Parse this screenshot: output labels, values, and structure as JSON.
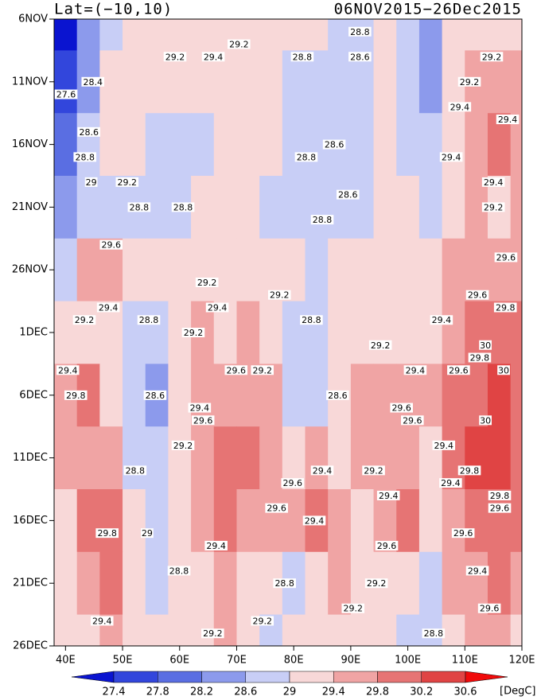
{
  "chart_data": {
    "type": "heatmap",
    "title_left": "Lat=(−10,10)",
    "title_right": "06NOV2015−26Dec2015",
    "unit_label": "[DegC]",
    "xlim": [
      38,
      120
    ],
    "xticks": [
      {
        "value": 40,
        "label": "40E"
      },
      {
        "value": 50,
        "label": "50E"
      },
      {
        "value": 60,
        "label": "60E"
      },
      {
        "value": 70,
        "label": "70E"
      },
      {
        "value": 80,
        "label": "80E"
      },
      {
        "value": 90,
        "label": "90E"
      },
      {
        "value": 100,
        "label": "100E"
      },
      {
        "value": 110,
        "label": "110E"
      },
      {
        "value": 120,
        "label": "120E"
      }
    ],
    "ylim": [
      "2015-11-06",
      "2015-12-26"
    ],
    "yticks": [
      {
        "value": "2015-11-06",
        "label": "6NOV"
      },
      {
        "value": "2015-11-11",
        "label": "11NOV"
      },
      {
        "value": "2015-11-16",
        "label": "16NOV"
      },
      {
        "value": "2015-11-21",
        "label": "21NOV"
      },
      {
        "value": "2015-11-26",
        "label": "26NOV"
      },
      {
        "value": "2015-12-01",
        "label": "1DEC"
      },
      {
        "value": "2015-12-06",
        "label": "6DEC"
      },
      {
        "value": "2015-12-11",
        "label": "11DEC"
      },
      {
        "value": "2015-12-16",
        "label": "16DEC"
      },
      {
        "value": "2015-12-21",
        "label": "21DEC"
      },
      {
        "value": "2015-12-26",
        "label": "26DEC"
      }
    ],
    "levels": [
      27.4,
      27.8,
      28.2,
      28.6,
      29,
      29.4,
      29.8,
      30.2,
      30.6
    ],
    "colors": [
      "#0a14d0",
      "#3246dc",
      "#5a6ee2",
      "#8c9aec",
      "#c8cef6",
      "#f8d8d8",
      "#f0a4a4",
      "#e67474",
      "#e04444",
      "#f00a0a"
    ],
    "x": [
      40,
      44,
      48,
      52,
      56,
      60,
      64,
      68,
      72,
      76,
      80,
      84,
      88,
      92,
      96,
      100,
      104,
      108,
      112,
      116,
      120
    ],
    "y": [
      "2015-11-06",
      "2015-11-11",
      "2015-11-16",
      "2015-11-21",
      "2015-11-26",
      "2015-12-01",
      "2015-12-06",
      "2015-12-11",
      "2015-12-16",
      "2015-12-21",
      "2015-12-26"
    ],
    "z": [
      [
        27.2,
        28.2,
        28.9,
        29.0,
        29.1,
        29.2,
        29.3,
        29.2,
        29.3,
        29.1,
        29.0,
        29.0,
        28.8,
        28.7,
        29.0,
        28.9,
        28.4,
        29.1,
        29.2,
        29.3,
        29.2
      ],
      [
        27.6,
        28.4,
        29.0,
        29.1,
        29.2,
        29.1,
        29.0,
        29.1,
        29.2,
        29.1,
        28.9,
        28.8,
        28.7,
        28.9,
        29.0,
        28.8,
        28.5,
        29.2,
        29.4,
        29.6,
        29.5
      ],
      [
        28.0,
        28.7,
        29.0,
        29.0,
        28.9,
        28.8,
        28.9,
        29.0,
        29.1,
        29.0,
        28.8,
        28.7,
        28.6,
        28.8,
        29.0,
        28.9,
        28.6,
        29.3,
        29.5,
        29.8,
        29.6
      ],
      [
        28.3,
        28.8,
        28.8,
        28.7,
        28.8,
        28.9,
        29.0,
        29.1,
        29.0,
        28.9,
        28.8,
        28.9,
        28.6,
        28.9,
        29.1,
        29.1,
        28.8,
        29.2,
        29.4,
        29.3,
        29.5
      ],
      [
        28.8,
        29.6,
        29.6,
        29.1,
        29.0,
        29.1,
        29.2,
        29.3,
        29.2,
        29.0,
        29.1,
        28.9,
        29.0,
        29.1,
        29.2,
        29.1,
        29.0,
        29.4,
        29.7,
        29.6,
        29.7
      ],
      [
        29.1,
        29.3,
        29.0,
        28.7,
        28.6,
        29.0,
        29.4,
        29.3,
        29.4,
        29.3,
        28.8,
        28.8,
        29.1,
        29.2,
        29.3,
        29.3,
        29.2,
        29.6,
        29.8,
        30.0,
        29.8
      ],
      [
        29.6,
        29.8,
        29.2,
        28.6,
        28.5,
        29.0,
        29.4,
        29.5,
        29.6,
        29.4,
        28.9,
        28.7,
        29.2,
        29.4,
        29.6,
        29.7,
        29.5,
        29.9,
        30.1,
        30.2,
        29.9
      ],
      [
        29.4,
        29.6,
        29.5,
        28.9,
        28.8,
        29.2,
        29.6,
        29.8,
        29.9,
        29.6,
        29.2,
        29.4,
        29.3,
        29.4,
        29.6,
        29.5,
        29.3,
        29.8,
        30.2,
        30.5,
        30.0
      ],
      [
        29.3,
        29.9,
        29.8,
        29.0,
        28.9,
        29.2,
        29.4,
        29.8,
        29.6,
        29.4,
        29.4,
        29.8,
        29.5,
        29.3,
        29.5,
        29.8,
        29.3,
        29.6,
        29.9,
        30.1,
        29.8
      ],
      [
        29.1,
        29.6,
        29.9,
        29.2,
        28.8,
        29.0,
        29.3,
        29.6,
        29.3,
        29.0,
        28.9,
        29.3,
        29.4,
        29.2,
        29.1,
        29.0,
        28.9,
        29.4,
        29.6,
        29.8,
        29.6
      ],
      [
        29.0,
        29.3,
        29.4,
        29.2,
        29.0,
        29.1,
        29.3,
        29.4,
        29.2,
        28.9,
        29.0,
        29.2,
        29.3,
        29.1,
        29.0,
        28.8,
        28.7,
        29.2,
        29.4,
        29.5,
        29.3
      ]
    ],
    "contour_labels": [
      {
        "x": 40.1,
        "y": "2015-11-12",
        "value": 27.6
      },
      {
        "x": 44.8,
        "y": "2015-11-11",
        "value": 28.4
      },
      {
        "x": 44.1,
        "y": "2015-11-15",
        "value": 28.6
      },
      {
        "x": 43.4,
        "y": "2015-11-17",
        "value": 28.8
      },
      {
        "x": 44.5,
        "y": "2015-11-19",
        "value": 29
      },
      {
        "x": 50.8,
        "y": "2015-11-19",
        "value": 29.2
      },
      {
        "x": 52.9,
        "y": "2015-11-21",
        "value": 28.8
      },
      {
        "x": 60.6,
        "y": "2015-11-21",
        "value": 28.8
      },
      {
        "x": 48,
        "y": "2015-11-24",
        "value": 29.6
      },
      {
        "x": 59.2,
        "y": "2015-11-09",
        "value": 29.2
      },
      {
        "x": 65.9,
        "y": "2015-11-09",
        "value": 29.4
      },
      {
        "x": 70.4,
        "y": "2015-11-08",
        "value": 29.2
      },
      {
        "x": 91.6,
        "y": "2015-11-07",
        "value": 28.8
      },
      {
        "x": 81.5,
        "y": "2015-11-09",
        "value": 28.8
      },
      {
        "x": 91.6,
        "y": "2015-11-09",
        "value": 28.6
      },
      {
        "x": 114.7,
        "y": "2015-11-09",
        "value": 29.2
      },
      {
        "x": 110.8,
        "y": "2015-11-11",
        "value": 29.2
      },
      {
        "x": 109.1,
        "y": "2015-11-13",
        "value": 29.4
      },
      {
        "x": 117.5,
        "y": "2015-11-14",
        "value": 29.4
      },
      {
        "x": 87.1,
        "y": "2015-11-16",
        "value": 28.6
      },
      {
        "x": 82.2,
        "y": "2015-11-17",
        "value": 28.8
      },
      {
        "x": 107.6,
        "y": "2015-11-17",
        "value": 29.4
      },
      {
        "x": 115,
        "y": "2015-11-19",
        "value": 29.4
      },
      {
        "x": 89.5,
        "y": "2015-11-20",
        "value": 28.6
      },
      {
        "x": 115,
        "y": "2015-11-21",
        "value": 29.2
      },
      {
        "x": 85,
        "y": "2015-11-22",
        "value": 28.8
      },
      {
        "x": 117.2,
        "y": "2015-11-25",
        "value": 29.6
      },
      {
        "x": 112.2,
        "y": "2015-11-28",
        "value": 29.6
      },
      {
        "x": 117.1,
        "y": "2015-11-29",
        "value": 29.8
      },
      {
        "x": 47.5,
        "y": "2015-11-29",
        "value": 29.4
      },
      {
        "x": 43.3,
        "y": "2015-11-30",
        "value": 29.2
      },
      {
        "x": 64.8,
        "y": "2015-11-27",
        "value": 29.2
      },
      {
        "x": 77.5,
        "y": "2015-11-28",
        "value": 29.2
      },
      {
        "x": 83.1,
        "y": "2015-11-30",
        "value": 28.8
      },
      {
        "x": 66.6,
        "y": "2015-11-29",
        "value": 29.4
      },
      {
        "x": 54.6,
        "y": "2015-11-30",
        "value": 28.8
      },
      {
        "x": 62.4,
        "y": "2015-12-01",
        "value": 29.2
      },
      {
        "x": 105.9,
        "y": "2015-11-30",
        "value": 29.4
      },
      {
        "x": 113.6,
        "y": "2015-12-02",
        "value": 30
      },
      {
        "x": 112.6,
        "y": "2015-12-03",
        "value": 29.8
      },
      {
        "x": 116.8,
        "y": "2015-12-04",
        "value": 30
      },
      {
        "x": 95.2,
        "y": "2015-12-02",
        "value": 29.2
      },
      {
        "x": 101.3,
        "y": "2015-12-04",
        "value": 29.4
      },
      {
        "x": 108.9,
        "y": "2015-12-04",
        "value": 29.6
      },
      {
        "x": 40.4,
        "y": "2015-12-04",
        "value": 29.4
      },
      {
        "x": 41.8,
        "y": "2015-12-06",
        "value": 29.8
      },
      {
        "x": 55.7,
        "y": "2015-12-06",
        "value": 28.6
      },
      {
        "x": 63.5,
        "y": "2015-12-07",
        "value": 29.4
      },
      {
        "x": 87.7,
        "y": "2015-12-06",
        "value": 28.6
      },
      {
        "x": 69.9,
        "y": "2015-12-04",
        "value": 29.6
      },
      {
        "x": 74.5,
        "y": "2015-12-04",
        "value": 29.2
      },
      {
        "x": 98.9,
        "y": "2015-12-07",
        "value": 29.6
      },
      {
        "x": 100.8,
        "y": "2015-12-08",
        "value": 29.6
      },
      {
        "x": 113.6,
        "y": "2015-12-08",
        "value": 30
      },
      {
        "x": 64.1,
        "y": "2015-12-08",
        "value": 29.6
      },
      {
        "x": 60.6,
        "y": "2015-12-10",
        "value": 29.2
      },
      {
        "x": 106.3,
        "y": "2015-12-10",
        "value": 29.4
      },
      {
        "x": 110.8,
        "y": "2015-12-12",
        "value": 29.8
      },
      {
        "x": 85,
        "y": "2015-12-12",
        "value": 29.4
      },
      {
        "x": 94,
        "y": "2015-12-12",
        "value": 29.2
      },
      {
        "x": 79.8,
        "y": "2015-12-13",
        "value": 29.6
      },
      {
        "x": 52.2,
        "y": "2015-12-12",
        "value": 28.8
      },
      {
        "x": 96.6,
        "y": "2015-12-14",
        "value": 29.4
      },
      {
        "x": 116.1,
        "y": "2015-12-14",
        "value": 29.8
      },
      {
        "x": 107.5,
        "y": "2015-12-13",
        "value": 29.4
      },
      {
        "x": 77,
        "y": "2015-12-15",
        "value": 29.6
      },
      {
        "x": 83.6,
        "y": "2015-12-16",
        "value": 29.4
      },
      {
        "x": 116.1,
        "y": "2015-12-15",
        "value": 29.6
      },
      {
        "x": 47.3,
        "y": "2015-12-17",
        "value": 29.8
      },
      {
        "x": 96.3,
        "y": "2015-12-18",
        "value": 29.6
      },
      {
        "x": 109.7,
        "y": "2015-12-17",
        "value": 29.6
      },
      {
        "x": 66.4,
        "y": "2015-12-18",
        "value": 29.4
      },
      {
        "x": 54.3,
        "y": "2015-12-17",
        "value": 29
      },
      {
        "x": 59.9,
        "y": "2015-12-20",
        "value": 28.8
      },
      {
        "x": 94.5,
        "y": "2015-12-21",
        "value": 29.2
      },
      {
        "x": 112.2,
        "y": "2015-12-20",
        "value": 29.4
      },
      {
        "x": 114.3,
        "y": "2015-12-23",
        "value": 29.6
      },
      {
        "x": 78.4,
        "y": "2015-12-21",
        "value": 28.8
      },
      {
        "x": 90.4,
        "y": "2015-12-23",
        "value": 29.2
      },
      {
        "x": 46.4,
        "y": "2015-12-24",
        "value": 29.4
      },
      {
        "x": 65.8,
        "y": "2015-12-25",
        "value": 29.2
      },
      {
        "x": 104.5,
        "y": "2015-12-25",
        "value": 28.8
      },
      {
        "x": 74.5,
        "y": "2015-12-24",
        "value": 29.2
      }
    ]
  }
}
